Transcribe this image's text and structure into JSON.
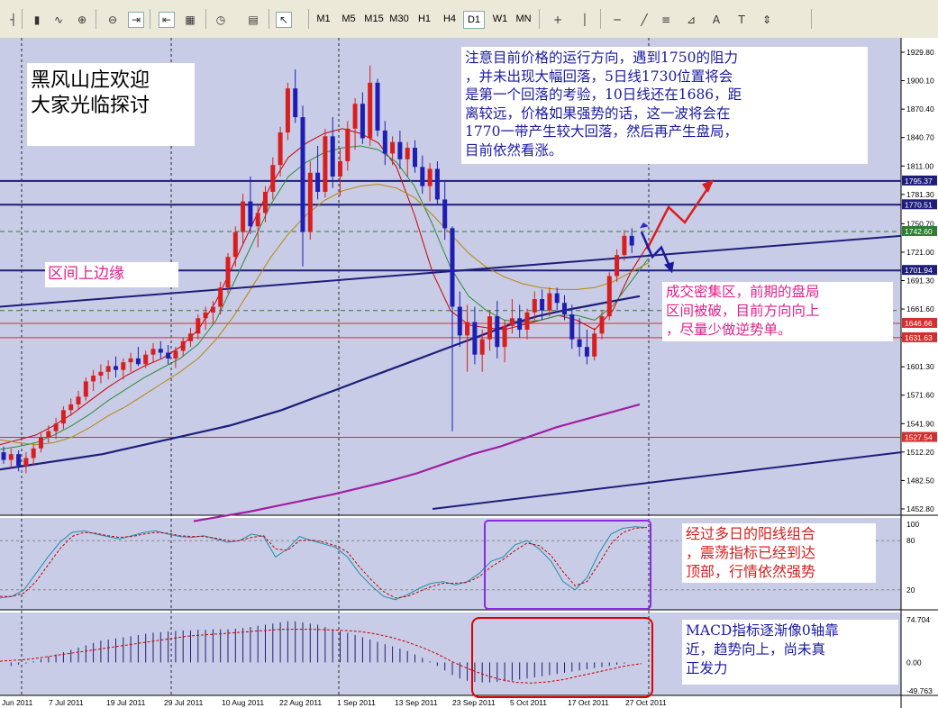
{
  "toolbar": {
    "timeframes": [
      "M1",
      "M5",
      "M15",
      "M30",
      "H1",
      "H4",
      "D1",
      "W1",
      "MN"
    ],
    "active_timeframe": "D1",
    "icons": [
      "bar-chart-icon",
      "candle-chart-icon",
      "line-chart-icon",
      "zoom-in-icon",
      "zoom-out-icon",
      "autoscroll-icon",
      "chart-shift-icon",
      "indicators-icon",
      "periodicity-icon",
      "templates-icon",
      "cursor-icon",
      "crosshair-icon",
      "vertical-line-icon",
      "horizontal-line-icon",
      "trendline-icon",
      "fibonacci-icon",
      "fibo-fan-icon",
      "text-icon",
      "label-icon",
      "arrows-icon"
    ]
  },
  "chart_data": [
    {
      "type": "candlestick",
      "panel": "main",
      "title": "",
      "y_axis_ticks": [
        "1929.80",
        "1900.10",
        "1870.40",
        "1840.70",
        "1811.00",
        "1781.30",
        "1750.70",
        "1721.00",
        "1691.30",
        "1661.60",
        "1631.90",
        "1601.30",
        "1571.60",
        "1541.90",
        "1512.20",
        "1482.50",
        "1452.80"
      ],
      "ylim": [
        1452.8,
        1929.8
      ],
      "x_axis_ticks": [
        "Jun 2011",
        "7 Jul 2011",
        "19 Jul 2011",
        "29 Jul 2011",
        "10 Aug 2011",
        "22 Aug 2011",
        "1 Sep 2011",
        "13 Sep 2011",
        "23 Sep 2011",
        "5 Oct 2011",
        "17 Oct 2011",
        "27 Oct 2011"
      ],
      "price_labels": [
        {
          "text": "1795.37",
          "color": "#1e1e7a",
          "value": 1795.37
        },
        {
          "text": "1770.51",
          "color": "#1e1e7a",
          "value": 1770.51
        },
        {
          "text": "1742.60",
          "color": "#2e7d32",
          "value": 1742.6
        },
        {
          "text": "1701.94",
          "color": "#1e1e7a",
          "value": 1701.94
        },
        {
          "text": "1646.66",
          "color": "#d32f2f",
          "value": 1646.66
        },
        {
          "text": "1631.63",
          "color": "#d32f2f",
          "value": 1631.63
        },
        {
          "text": "1527.54",
          "color": "#d32f2f",
          "value": 1527.54
        }
      ],
      "candles": [
        [
          1512,
          1518,
          1500,
          1504
        ],
        [
          1504,
          1516,
          1496,
          1510
        ],
        [
          1510,
          1514,
          1492,
          1498
        ],
        [
          1498,
          1512,
          1490,
          1506
        ],
        [
          1506,
          1520,
          1498,
          1516
        ],
        [
          1516,
          1532,
          1512,
          1528
        ],
        [
          1528,
          1540,
          1522,
          1534
        ],
        [
          1534,
          1548,
          1526,
          1542
        ],
        [
          1542,
          1560,
          1536,
          1556
        ],
        [
          1556,
          1568,
          1550,
          1562
        ],
        [
          1562,
          1576,
          1556,
          1570
        ],
        [
          1570,
          1590,
          1566,
          1586
        ],
        [
          1586,
          1598,
          1576,
          1592
        ],
        [
          1592,
          1604,
          1584,
          1596
        ],
        [
          1596,
          1608,
          1588,
          1602
        ],
        [
          1602,
          1612,
          1590,
          1598
        ],
        [
          1598,
          1610,
          1588,
          1606
        ],
        [
          1606,
          1616,
          1596,
          1610
        ],
        [
          1610,
          1622,
          1602,
          1604
        ],
        [
          1604,
          1618,
          1600,
          1614
        ],
        [
          1614,
          1626,
          1606,
          1620
        ],
        [
          1620,
          1628,
          1610,
          1616
        ],
        [
          1616,
          1624,
          1604,
          1610
        ],
        [
          1610,
          1622,
          1600,
          1618
        ],
        [
          1618,
          1632,
          1612,
          1628
        ],
        [
          1628,
          1642,
          1622,
          1636
        ],
        [
          1636,
          1656,
          1630,
          1652
        ],
        [
          1652,
          1664,
          1640,
          1658
        ],
        [
          1658,
          1670,
          1646,
          1664
        ],
        [
          1664,
          1690,
          1656,
          1684
        ],
        [
          1684,
          1720,
          1678,
          1716
        ],
        [
          1716,
          1748,
          1706,
          1742
        ],
        [
          1742,
          1782,
          1730,
          1774
        ],
        [
          1774,
          1800,
          1740,
          1748
        ],
        [
          1748,
          1770,
          1726,
          1762
        ],
        [
          1762,
          1790,
          1752,
          1784
        ],
        [
          1784,
          1820,
          1776,
          1812
        ],
        [
          1812,
          1852,
          1800,
          1846
        ],
        [
          1846,
          1898,
          1838,
          1892
        ],
        [
          1892,
          1912,
          1856,
          1862
        ],
        [
          1862,
          1874,
          1706,
          1742
        ],
        [
          1742,
          1816,
          1734,
          1804
        ],
        [
          1804,
          1832,
          1776,
          1784
        ],
        [
          1784,
          1850,
          1778,
          1842
        ],
        [
          1842,
          1862,
          1788,
          1800
        ],
        [
          1800,
          1830,
          1780,
          1816
        ],
        [
          1816,
          1858,
          1806,
          1850
        ],
        [
          1850,
          1882,
          1828,
          1876
        ],
        [
          1876,
          1888,
          1834,
          1840
        ],
        [
          1840,
          1916,
          1832,
          1898
        ],
        [
          1898,
          1902,
          1842,
          1848
        ],
        [
          1848,
          1858,
          1812,
          1824
        ],
        [
          1824,
          1842,
          1812,
          1836
        ],
        [
          1836,
          1848,
          1808,
          1818
        ],
        [
          1818,
          1836,
          1800,
          1830
        ],
        [
          1830,
          1838,
          1804,
          1810
        ],
        [
          1810,
          1822,
          1782,
          1790
        ],
        [
          1790,
          1814,
          1774,
          1808
        ],
        [
          1808,
          1816,
          1770,
          1776
        ],
        [
          1776,
          1796,
          1734,
          1746
        ],
        [
          1746,
          1748,
          1534,
          1664
        ],
        [
          1664,
          1680,
          1622,
          1634
        ],
        [
          1634,
          1666,
          1596,
          1648
        ],
        [
          1648,
          1664,
          1604,
          1614
        ],
        [
          1614,
          1640,
          1596,
          1630
        ],
        [
          1630,
          1660,
          1618,
          1654
        ],
        [
          1654,
          1670,
          1610,
          1622
        ],
        [
          1622,
          1650,
          1606,
          1644
        ],
        [
          1644,
          1672,
          1636,
          1652
        ],
        [
          1652,
          1666,
          1632,
          1640
        ],
        [
          1640,
          1662,
          1630,
          1658
        ],
        [
          1658,
          1680,
          1650,
          1672
        ],
        [
          1672,
          1682,
          1650,
          1660
        ],
        [
          1660,
          1684,
          1654,
          1678
        ],
        [
          1678,
          1684,
          1660,
          1668
        ],
        [
          1668,
          1676,
          1650,
          1656
        ],
        [
          1656,
          1666,
          1620,
          1630
        ],
        [
          1630,
          1652,
          1612,
          1622
        ],
        [
          1622,
          1640,
          1604,
          1612
        ],
        [
          1612,
          1642,
          1608,
          1636
        ],
        [
          1636,
          1660,
          1630,
          1654
        ],
        [
          1654,
          1700,
          1650,
          1696
        ],
        [
          1696,
          1724,
          1690,
          1718
        ],
        [
          1718,
          1744,
          1712,
          1738
        ],
        [
          1738,
          1746,
          1720,
          1728
        ]
      ],
      "moving_averages": [
        {
          "color": "#cc0000",
          "points": [
            1520,
            1525,
            1530,
            1540,
            1552,
            1566,
            1580,
            1592,
            1602,
            1610,
            1622,
            1640,
            1670,
            1710,
            1750,
            1790,
            1820,
            1835,
            1845,
            1850,
            1845,
            1835,
            1810,
            1760,
            1700,
            1660,
            1645,
            1642,
            1640,
            1645,
            1650,
            1655,
            1650,
            1640,
            1660,
            1700,
            1730
          ]
        },
        {
          "color": "#2e8b3a",
          "points": [
            1515,
            1518,
            1522,
            1530,
            1540,
            1552,
            1566,
            1578,
            1590,
            1600,
            1610,
            1625,
            1650,
            1690,
            1730,
            1770,
            1800,
            1815,
            1825,
            1830,
            1832,
            1828,
            1815,
            1790,
            1750,
            1705,
            1675,
            1660,
            1650,
            1648,
            1650,
            1655,
            1655,
            1650,
            1665,
            1690,
            1715
          ]
        },
        {
          "color": "#b8860b",
          "points": [
            1525,
            1522,
            1520,
            1522,
            1528,
            1538,
            1550,
            1560,
            1572,
            1584,
            1596,
            1610,
            1630,
            1655,
            1685,
            1715,
            1740,
            1760,
            1775,
            1785,
            1790,
            1792,
            1788,
            1778,
            1760,
            1740,
            1720,
            1705,
            1695,
            1688,
            1684,
            1682,
            1682,
            1684,
            1690,
            1700,
            1710
          ]
        },
        {
          "color": "#1e1e7a",
          "points": [
            1494,
            1498,
            1502,
            1506,
            1510,
            1516,
            1522,
            1528,
            1534,
            1540,
            1548,
            1556,
            1566,
            1576,
            1586,
            1596,
            1606,
            1616,
            1626,
            1636,
            1646,
            1654,
            1660,
            1665,
            1670,
            1675
          ]
        },
        {
          "color": "#a020a0",
          "points": [
            1440,
            1445,
            1450,
            1456,
            1462,
            1468,
            1475,
            1482,
            1490,
            1500,
            1510,
            1518,
            1528,
            1538,
            1546,
            1554,
            1562
          ]
        }
      ]
    },
    {
      "type": "line",
      "panel": "stochastic",
      "y_axis_ticks": [
        "100",
        "80",
        "20"
      ],
      "ylim": [
        0,
        100
      ],
      "series": [
        {
          "color": "#1e8fb0",
          "values": [
            10,
            12,
            20,
            40,
            60,
            78,
            90,
            92,
            88,
            85,
            82,
            86,
            90,
            92,
            88,
            85,
            84,
            86,
            82,
            78,
            80,
            88,
            85,
            60,
            70,
            85,
            80,
            76,
            72,
            60,
            40,
            25,
            12,
            8,
            14,
            22,
            28,
            30,
            26,
            30,
            40,
            55,
            60,
            75,
            80,
            70,
            55,
            30,
            20,
            35,
            65,
            88,
            95,
            97,
            96
          ]
        },
        {
          "color": "#cc0000",
          "values": [
            12,
            12,
            16,
            30,
            50,
            70,
            85,
            90,
            89,
            86,
            84,
            85,
            88,
            90,
            89,
            86,
            85,
            85,
            83,
            80,
            80,
            84,
            86,
            70,
            68,
            80,
            81,
            78,
            74,
            66,
            48,
            32,
            18,
            10,
            12,
            18,
            24,
            28,
            28,
            29,
            36,
            48,
            57,
            68,
            77,
            74,
            62,
            42,
            25,
            30,
            52,
            76,
            90,
            95,
            96
          ]
        }
      ]
    },
    {
      "type": "bar",
      "panel": "macd",
      "y_axis_ticks": [
        "74.704",
        "0.00",
        "-49.763"
      ],
      "ylim": [
        -49.763,
        74.704
      ],
      "values": [
        -6,
        -4,
        -2,
        2,
        6,
        10,
        14,
        18,
        22,
        26,
        30,
        34,
        38,
        40,
        42,
        44,
        46,
        48,
        50,
        52,
        53,
        54,
        55,
        56,
        56,
        57,
        57,
        58,
        58,
        58,
        59,
        60,
        62,
        64,
        66,
        68,
        70,
        72,
        72,
        70,
        68,
        66,
        62,
        58,
        55,
        52,
        48,
        44,
        40,
        36,
        32,
        28,
        24,
        20,
        14,
        8,
        2,
        -6,
        -14,
        -22,
        -28,
        -32,
        -34,
        -35,
        -35,
        -34,
        -33,
        -32,
        -30,
        -28,
        -26,
        -24,
        -22,
        -20,
        -18,
        -16,
        -14,
        -12,
        -10,
        -8,
        -6,
        -4,
        -2
      ],
      "signal": [
        2,
        4,
        6,
        10,
        14,
        18,
        22,
        26,
        30,
        34,
        38,
        42,
        46,
        48,
        50,
        52,
        54,
        56,
        58,
        58,
        58,
        57,
        56,
        54,
        50,
        44,
        36,
        26,
        14,
        0,
        -12,
        -22,
        -30,
        -35,
        -36,
        -34,
        -30,
        -24,
        -18,
        -12,
        -6,
        -2
      ]
    }
  ],
  "annotations": {
    "welcome": "黑风山庄欢迎\n大家光临探讨",
    "resistance_note": "注意目前价格的运行方向，遇到1750的阻力\n，并未出现大幅回落，5日线1730位置将会\n是第一个回落的考验，10日线还在1686，距\n离较远，价格如果强势的话，这一波将会在\n1770一带产生较大回落，然后再产生盘局，\n目前依然看涨。",
    "upper_edge": "区间上边缘",
    "volume_zone": "成交密集区，前期的盘局\n区间被破，目前方向向上\n，尽量少做逆势单。",
    "stoch_note": "经过多日的阳线组合\n，震荡指标已经到达\n顶部，行情依然强势",
    "macd_note": "MACD指标逐渐像0轴靠\n近，趋势向上，尚未真\n正发力"
  },
  "colors": {
    "background": "#c8cce6",
    "bull": "#d81e1e",
    "bear": "#1e1eb4",
    "annotation_blue": "#1a1aa0",
    "annotation_magenta": "#e0208c",
    "annotation_red": "#d81e1e"
  }
}
